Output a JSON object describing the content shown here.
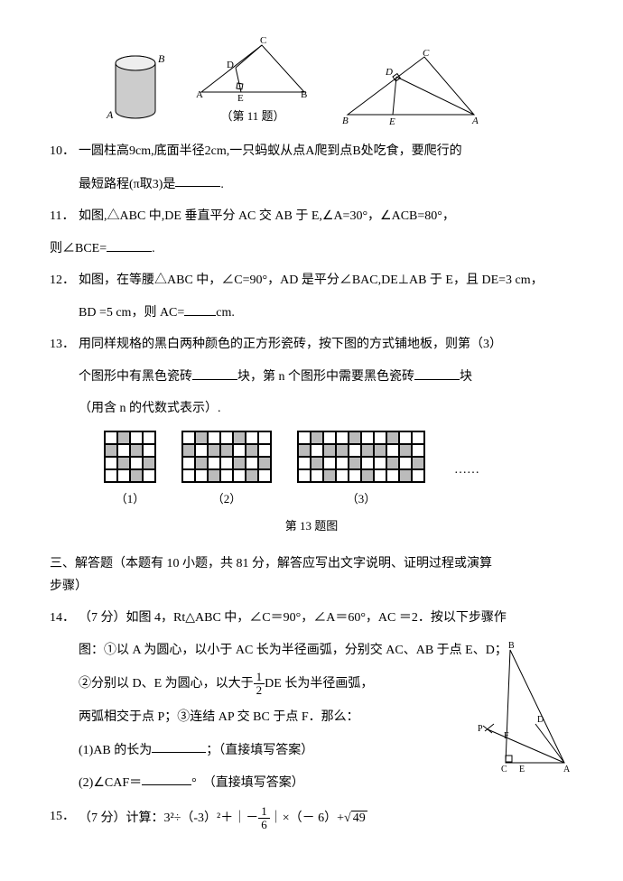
{
  "figures": {
    "fig11_label": "（第 11 题）"
  },
  "q10": {
    "num": "10．",
    "line1": "一圆柱高9cm,底面半径2cm,一只蚂蚁从点A爬到点B处吃食，要爬行的",
    "line2_a": "最短路程(π取3)是",
    "period": "."
  },
  "q11": {
    "num": "11．",
    "line1": "如图,△ABC 中,DE 垂直平分 AC 交 AB 于 E,∠A=30°，∠ACB=80°，",
    "line2_a": "则∠BCE=",
    "period": "."
  },
  "q12": {
    "num": "12．",
    "line1": "如图，在等腰△ABC 中，∠C=90°，AD 是平分∠BAC,DE⊥AB 于 E，且 DE=3 cm，",
    "line2_a": "BD =5 cm，则 AC=",
    "line2_b": "cm."
  },
  "q13": {
    "num": "13．",
    "line1": "用同样规格的黑白两种颜色的正方形瓷砖，按下图的方式铺地板，则第（3）",
    "line2_a": "个图形中有黑色瓷砖",
    "line2_b": "块，第 n 个图形中需要黑色瓷砖",
    "line2_c": "块",
    "line3": "（用含 n 的代数式表示）.",
    "labels": {
      "p1": "（1）",
      "p2": "（2）",
      "p3": "（3）"
    },
    "caption": "第 13 题图",
    "dots": "……",
    "tile_colors": {
      "white": "#ffffff",
      "gray": "#bbbbbb",
      "border": "#000000"
    }
  },
  "section3": {
    "head": "三、解答题（本题有 10 小题，共 81 分，解答应写出文字说明、证明过程或演算",
    "head2": "步骤）"
  },
  "q14": {
    "num": "14．",
    "line1": "（7 分）如图 4，Rt△ABC 中，∠C＝90°，∠A＝60°，AC ＝2．按以下步骤作",
    "line2": "图：①以 A 为圆心，以小于 AC 长为半径画弧，分别交 AC、AB 于点 E、D；",
    "line3_a": "②分别以 D、E 为圆心，以大于",
    "line3_b": "DE 长为半径画弧，",
    "frac": {
      "num": "1",
      "den": "2"
    },
    "line4": "两弧相交于点 P；③连结 AP 交 BC 于点 F．那么：",
    "sub1_a": "(1)AB 的长为",
    "sub1_b": "；（直接填写答案）",
    "sub2_a": "(2)∠CAF＝",
    "sub2_b": "°　（直接填写答案）"
  },
  "q15": {
    "num": "15．",
    "text_a": "（7 分）计算：3²÷（-3）²＋｜－",
    "frac": {
      "num": "1",
      "den": "6"
    },
    "text_b": "｜×（－ 6）+",
    "sqrt": "49"
  },
  "svg": {
    "stroke": "#000000",
    "cylinder": {
      "A": "A",
      "B": "B"
    },
    "tri11": {
      "A": "A",
      "B": "B",
      "C": "C",
      "D": "D",
      "E": "E"
    },
    "tri12": {
      "A": "A",
      "B": "B",
      "C": "C",
      "D": "D",
      "E": "E"
    },
    "tri14": {
      "A": "A",
      "B": "B",
      "C": "C",
      "D": "D",
      "E": "E",
      "F": "F",
      "P": "P"
    }
  }
}
